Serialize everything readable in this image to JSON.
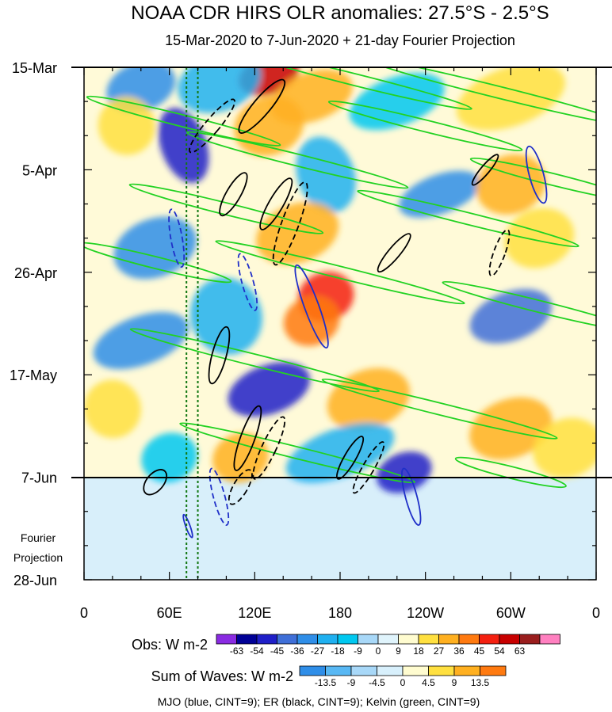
{
  "chart_data": {
    "type": "heatmap",
    "title": "NOAA CDR HIRS OLR anomalies: 27.5°S - 2.5°S",
    "subtitle": "15-Mar-2020 to 7-Jun-2020 + 21-day Fourier Projection",
    "x_ticks": [
      "0",
      "60E",
      "120E",
      "180",
      "120W",
      "60W",
      "0"
    ],
    "x_tick_values": [
      0,
      60,
      120,
      180,
      240,
      300,
      360
    ],
    "xlim": [
      0,
      360
    ],
    "y_ticks": [
      "15-Mar",
      "5-Apr",
      "26-Apr",
      "17-May",
      "7-Jun",
      "28-Jun"
    ],
    "y_tick_days": [
      0,
      21,
      42,
      63,
      84,
      105
    ],
    "ylim_days": [
      0,
      105
    ],
    "observation_end_label": "7-Jun",
    "projection_label_lines": [
      "Fourier",
      "Projection"
    ],
    "obs_colorbar": {
      "label": "Obs: W m-2",
      "levels": [
        "-63",
        "-54",
        "-45",
        "-36",
        "-27",
        "-18",
        "-9",
        "0",
        "9",
        "18",
        "27",
        "36",
        "45",
        "54",
        "63"
      ],
      "colors": [
        "#8a2be2",
        "#000096",
        "#1f1fc8",
        "#3f6fd8",
        "#2f8ee8",
        "#1fb0f0",
        "#00c8f0",
        "#a8d8f8",
        "#e0f4fc",
        "#fffcd0",
        "#ffe040",
        "#ffb020",
        "#ff7a10",
        "#f42010",
        "#c80000",
        "#9a1e1e",
        "#ff80c0"
      ]
    },
    "waves_colorbar": {
      "label": "Sum of Waves: W m-2",
      "levels": [
        "-13.5",
        "-9",
        "-4.5",
        "0",
        "4.5",
        "9",
        "13.5"
      ],
      "colors": [
        "#2f8ee8",
        "#58b8f4",
        "#a8d8f8",
        "#d8f0fc",
        "#fffcd0",
        "#ffe040",
        "#ffb020",
        "#ff7a10"
      ]
    },
    "footnote": "MJO (blue, CINT=9); ER (black, CINT=9); Kelvin (green, CINT=9)",
    "contour_colors": {
      "MJO": "#1f2fc8",
      "ER": "#000000",
      "Kelvin": "#22d222"
    },
    "reference_longitudes_dotted": [
      72,
      80
    ],
    "anomaly_blobs": [
      {
        "lon": 130,
        "day": 1.5,
        "w": 22,
        "h": 4,
        "val": 54
      },
      {
        "lon": 160,
        "day": 6,
        "w": 30,
        "h": 5,
        "val": 27
      },
      {
        "lon": 95,
        "day": 3,
        "w": 30,
        "h": 6,
        "val": -27
      },
      {
        "lon": 40,
        "day": 4,
        "w": 25,
        "h": 5,
        "val": -36
      },
      {
        "lon": 70,
        "day": 16,
        "w": 16,
        "h": 8,
        "val": -54
      },
      {
        "lon": 30,
        "day": 12,
        "w": 20,
        "h": 6,
        "val": 18
      },
      {
        "lon": 130,
        "day": 12,
        "w": 25,
        "h": 6,
        "val": 27
      },
      {
        "lon": 220,
        "day": 7,
        "w": 35,
        "h": 5,
        "val": -18
      },
      {
        "lon": 300,
        "day": 6,
        "w": 40,
        "h": 6,
        "val": 18
      },
      {
        "lon": 170,
        "day": 22,
        "w": 20,
        "h": 8,
        "val": -27
      },
      {
        "lon": 250,
        "day": 26,
        "w": 30,
        "h": 4,
        "val": -36
      },
      {
        "lon": 300,
        "day": 24,
        "w": 25,
        "h": 6,
        "val": 27
      },
      {
        "lon": 150,
        "day": 34,
        "w": 30,
        "h": 6,
        "val": 27
      },
      {
        "lon": 50,
        "day": 37,
        "w": 30,
        "h": 6,
        "val": -36
      },
      {
        "lon": 320,
        "day": 35,
        "w": 25,
        "h": 6,
        "val": 18
      },
      {
        "lon": 170,
        "day": 47,
        "w": 20,
        "h": 5,
        "val": 45
      },
      {
        "lon": 160,
        "day": 52,
        "w": 20,
        "h": 5,
        "val": 36
      },
      {
        "lon": 100,
        "day": 51,
        "w": 25,
        "h": 8,
        "val": -27
      },
      {
        "lon": 300,
        "day": 51,
        "w": 30,
        "h": 5,
        "val": -45
      },
      {
        "lon": 40,
        "day": 56,
        "w": 35,
        "h": 5,
        "val": -36
      },
      {
        "lon": 130,
        "day": 66,
        "w": 30,
        "h": 5,
        "val": -54
      },
      {
        "lon": 200,
        "day": 68,
        "w": 30,
        "h": 6,
        "val": 27
      },
      {
        "lon": 300,
        "day": 74,
        "w": 30,
        "h": 6,
        "val": 27
      },
      {
        "lon": 20,
        "day": 70,
        "w": 20,
        "h": 6,
        "val": 18
      },
      {
        "lon": 180,
        "day": 79,
        "w": 40,
        "h": 5,
        "val": -27
      },
      {
        "lon": 225,
        "day": 83,
        "w": 20,
        "h": 4,
        "val": -54
      },
      {
        "lon": 110,
        "day": 80,
        "w": 20,
        "h": 5,
        "val": 27
      },
      {
        "lon": 340,
        "day": 78,
        "w": 25,
        "h": 6,
        "val": 18
      },
      {
        "lon": 60,
        "day": 80,
        "w": 20,
        "h": 5,
        "val": -18
      }
    ],
    "kelvin_bands": [
      {
        "lon": 190,
        "day": 2.5,
        "lon_span": 170,
        "thick_days": 1.2
      },
      {
        "lon": 290,
        "day": 5,
        "lon_span": 190,
        "thick_days": 1.2
      },
      {
        "lon": 70,
        "day": 11,
        "lon_span": 140,
        "thick_days": 1.2
      },
      {
        "lon": 240,
        "day": 12,
        "lon_span": 140,
        "thick_days": 1.2
      },
      {
        "lon": 150,
        "day": 19,
        "lon_span": 160,
        "thick_days": 1.2
      },
      {
        "lon": 330,
        "day": 23,
        "lon_span": 120,
        "thick_days": 1.2
      },
      {
        "lon": 100,
        "day": 29,
        "lon_span": 140,
        "thick_days": 1.2
      },
      {
        "lon": 270,
        "day": 31,
        "lon_span": 160,
        "thick_days": 1.2
      },
      {
        "lon": 50,
        "day": 40,
        "lon_span": 110,
        "thick_days": 1.2
      },
      {
        "lon": 180,
        "day": 42,
        "lon_span": 180,
        "thick_days": 1.2
      },
      {
        "lon": 320,
        "day": 49,
        "lon_span": 140,
        "thick_days": 1.2
      },
      {
        "lon": 120,
        "day": 60,
        "lon_span": 180,
        "thick_days": 1.2
      },
      {
        "lon": 250,
        "day": 70,
        "lon_span": 170,
        "thick_days": 1.2
      },
      {
        "lon": 150,
        "day": 79,
        "lon_span": 170,
        "thick_days": 1.2
      },
      {
        "lon": 300,
        "day": 83,
        "lon_span": 80,
        "thick_days": 1.2
      }
    ],
    "er_contours": [
      {
        "lon": 125,
        "day": 8,
        "rx": 6,
        "ry_days": 7,
        "tilt": 40,
        "dashed": false
      },
      {
        "lon": 90,
        "day": 12,
        "rx": 5,
        "ry_days": 7,
        "tilt": 40,
        "dashed": true
      },
      {
        "lon": 105,
        "day": 26,
        "rx": 5,
        "ry_days": 5,
        "tilt": 30,
        "dashed": false
      },
      {
        "lon": 135,
        "day": 28,
        "rx": 5,
        "ry_days": 6,
        "tilt": 30,
        "dashed": false
      },
      {
        "lon": 145,
        "day": 32,
        "rx": 6,
        "ry_days": 9,
        "tilt": 20,
        "dashed": true
      },
      {
        "lon": 218,
        "day": 38,
        "rx": 4,
        "ry_days": 5,
        "tilt": 40,
        "dashed": false
      },
      {
        "lon": 282,
        "day": 21,
        "rx": 3,
        "ry_days": 4,
        "tilt": 40,
        "dashed": false
      },
      {
        "lon": 292,
        "day": 38,
        "rx": 4,
        "ry_days": 5,
        "tilt": 20,
        "dashed": true
      },
      {
        "lon": 95,
        "day": 59,
        "rx": 5,
        "ry_days": 6,
        "tilt": 15,
        "dashed": false
      },
      {
        "lon": 115,
        "day": 76,
        "rx": 5,
        "ry_days": 7,
        "tilt": 20,
        "dashed": false
      },
      {
        "lon": 130,
        "day": 78,
        "rx": 5,
        "ry_days": 7,
        "tilt": 25,
        "dashed": true
      },
      {
        "lon": 187,
        "day": 80,
        "rx": 4,
        "ry_days": 5,
        "tilt": 30,
        "dashed": false
      },
      {
        "lon": 200,
        "day": 82,
        "rx": 4,
        "ry_days": 6,
        "tilt": 30,
        "dashed": true
      },
      {
        "lon": 50,
        "day": 85,
        "rx": 6,
        "ry_days": 3,
        "tilt": 40,
        "dashed": false
      },
      {
        "lon": 110,
        "day": 86,
        "rx": 5,
        "ry_days": 4,
        "tilt": 30,
        "dashed": true
      }
    ],
    "mjo_contours": [
      {
        "lon": 318,
        "day": 22,
        "rx": 5,
        "ry_days": 6,
        "tilt": -15,
        "dashed": false
      },
      {
        "lon": 65,
        "day": 35,
        "rx": 4,
        "ry_days": 6,
        "tilt": -10,
        "dashed": true
      },
      {
        "lon": 115,
        "day": 44,
        "rx": 4,
        "ry_days": 6,
        "tilt": -15,
        "dashed": true
      },
      {
        "lon": 160,
        "day": 49,
        "rx": 5,
        "ry_days": 9,
        "tilt": -20,
        "dashed": false
      },
      {
        "lon": 230,
        "day": 88,
        "rx": 4,
        "ry_days": 6,
        "tilt": -15,
        "dashed": false
      },
      {
        "lon": 95,
        "day": 88,
        "rx": 4,
        "ry_days": 6,
        "tilt": -15,
        "dashed": true
      },
      {
        "lon": 73,
        "day": 94,
        "rx": 1.5,
        "ry_days": 2.5,
        "tilt": -20,
        "dashed": false
      }
    ]
  }
}
